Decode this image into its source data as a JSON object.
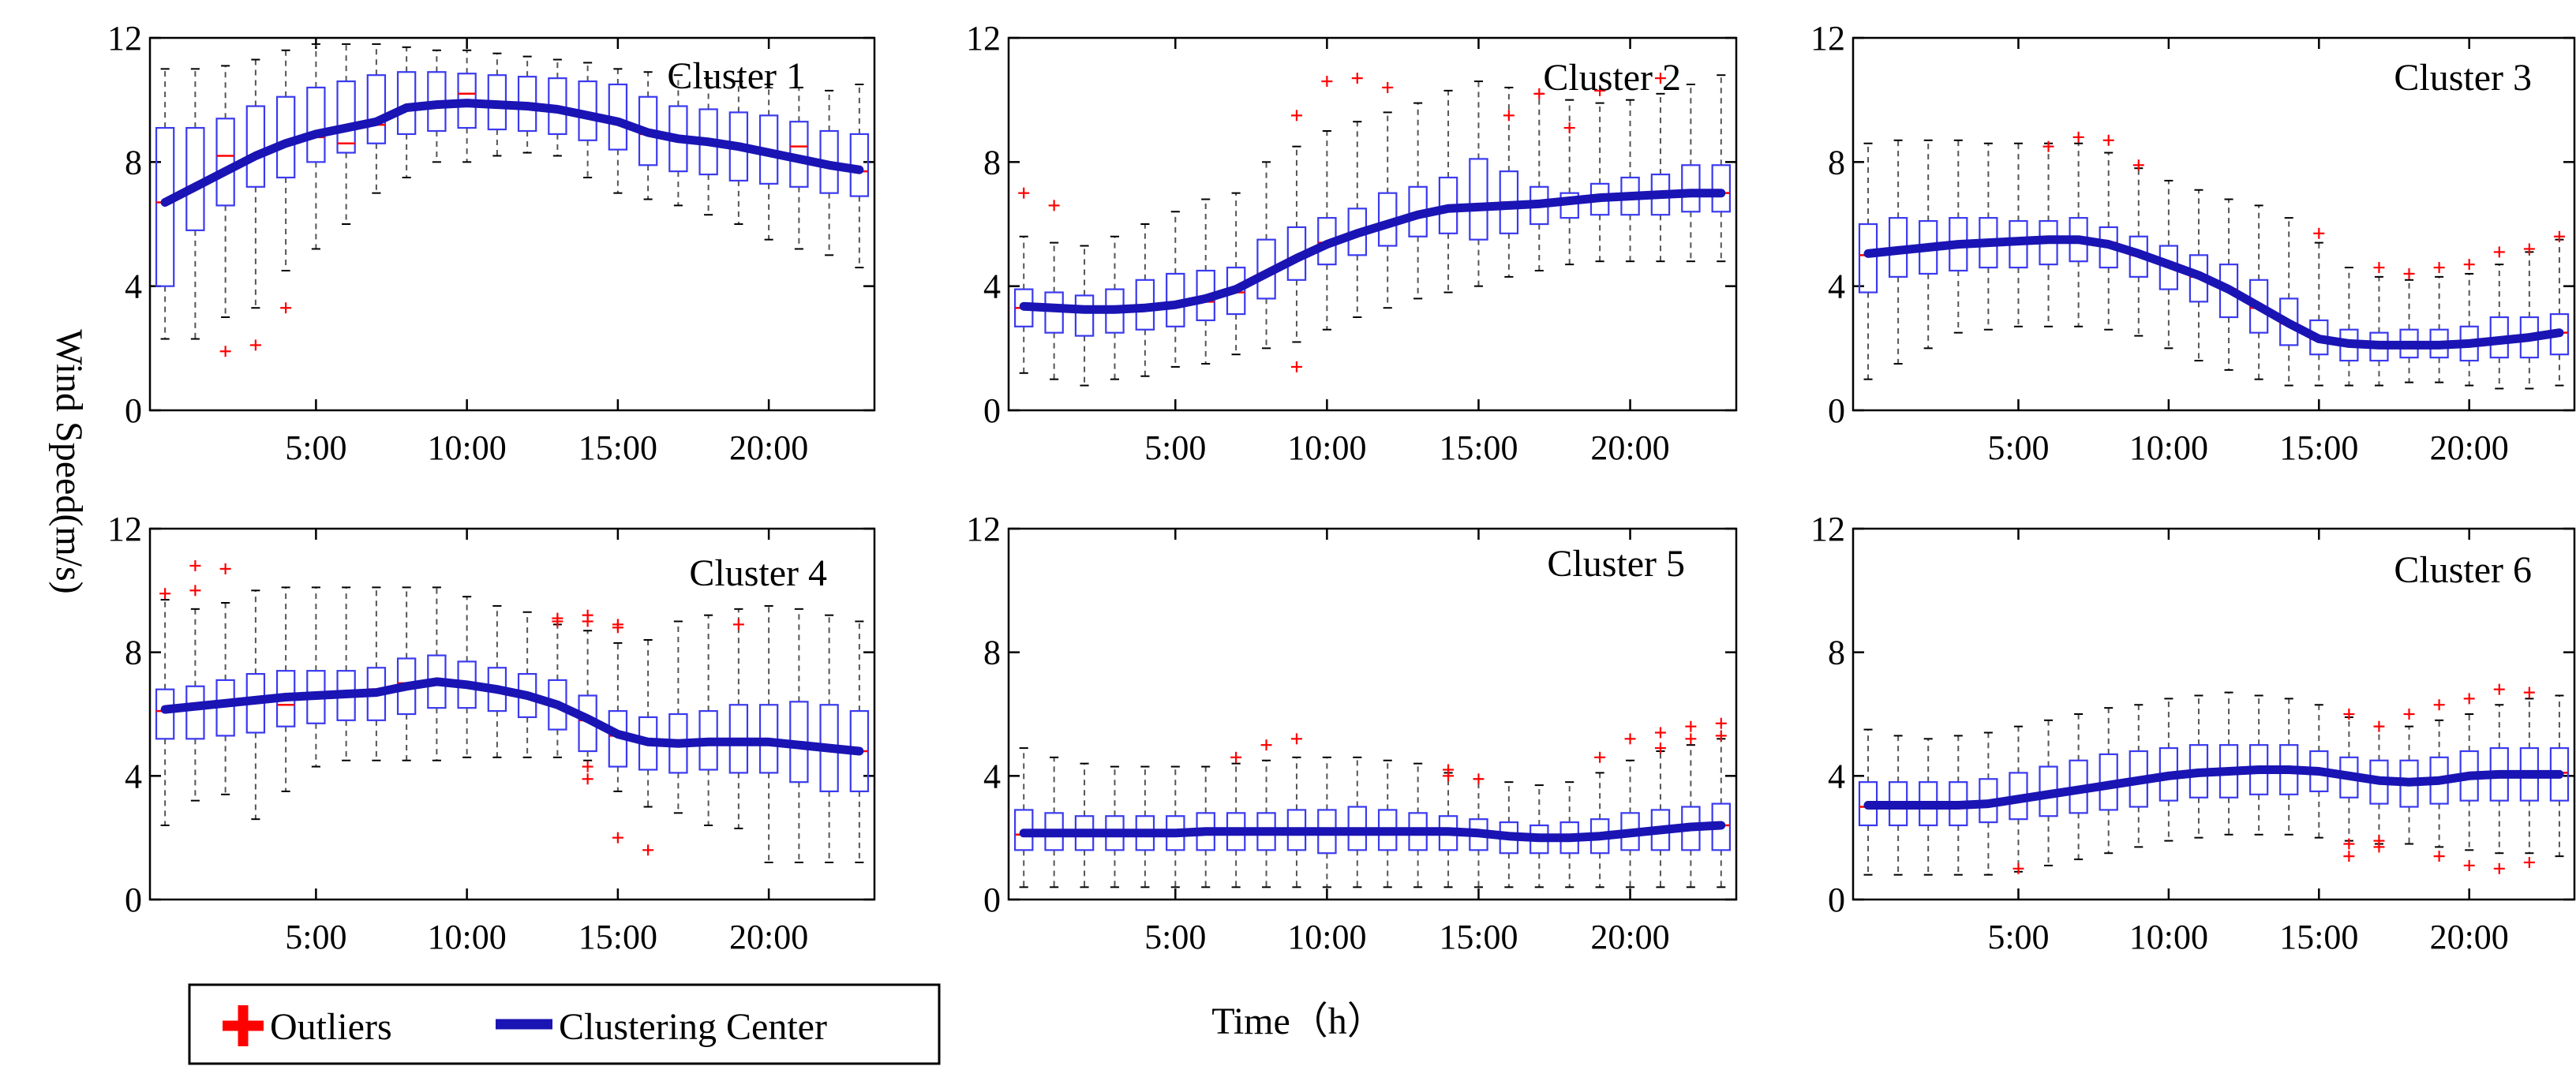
{
  "chart_data": {
    "type": "box",
    "xlabel": "Time（h）",
    "ylabel": "Wind Speed(m/s)",
    "x_tick_labels": [
      "5:00",
      "10:00",
      "15:00",
      "20:00"
    ],
    "y_tick_labels": [
      "0",
      "4",
      "8",
      "12"
    ],
    "ylim": [
      0,
      12
    ],
    "xlim": [
      -0.5,
      23.5
    ],
    "grid": false,
    "legend": {
      "position": "bottom-left",
      "entries": [
        {
          "label": "Outliers",
          "marker": "plus",
          "color": "#ff0000"
        },
        {
          "label": "Clustering Center",
          "marker": "line",
          "color": "#1a14b4"
        }
      ]
    },
    "colors": {
      "box": "#3a3af0",
      "median": "#ff0000",
      "whisker": "#555555",
      "center": "#1a14b4",
      "outlier": "#ff0000"
    },
    "panels": [
      {
        "title": "Cluster 1",
        "center": [
          6.7,
          7.2,
          7.7,
          8.2,
          8.6,
          8.9,
          9.1,
          9.3,
          9.75,
          9.85,
          9.9,
          9.85,
          9.8,
          9.7,
          9.5,
          9.3,
          8.95,
          8.75,
          8.65,
          8.5,
          8.3,
          8.1,
          7.9,
          7.75
        ],
        "q1": [
          4.0,
          5.8,
          6.6,
          7.2,
          7.5,
          8.0,
          8.3,
          8.6,
          8.9,
          9.0,
          9.1,
          9.05,
          9.0,
          8.9,
          8.7,
          8.4,
          7.9,
          7.7,
          7.6,
          7.4,
          7.3,
          7.2,
          7.0,
          6.9
        ],
        "q3": [
          9.1,
          9.1,
          9.4,
          9.8,
          10.1,
          10.4,
          10.6,
          10.8,
          10.9,
          10.9,
          10.85,
          10.8,
          10.75,
          10.7,
          10.6,
          10.5,
          10.1,
          9.8,
          9.7,
          9.6,
          9.5,
          9.3,
          9.0,
          8.9
        ],
        "median": [
          6.7,
          7.2,
          8.2,
          8.2,
          8.6,
          8.8,
          8.6,
          9.2,
          9.75,
          9.85,
          10.2,
          9.9,
          9.8,
          9.7,
          9.5,
          9.3,
          8.9,
          8.7,
          8.6,
          8.5,
          8.3,
          8.5,
          7.9,
          7.7
        ],
        "wlo": [
          2.3,
          2.3,
          3.0,
          3.3,
          4.5,
          5.2,
          6.0,
          7.0,
          7.5,
          8.0,
          8.0,
          8.2,
          8.3,
          8.2,
          7.5,
          7.0,
          6.8,
          6.6,
          6.3,
          6.0,
          5.5,
          5.2,
          5.0,
          4.6
        ],
        "whi": [
          11.0,
          11.0,
          11.1,
          11.3,
          11.6,
          11.8,
          11.8,
          11.8,
          11.7,
          11.6,
          11.6,
          11.5,
          11.4,
          11.3,
          11.2,
          11.0,
          10.9,
          10.8,
          10.7,
          10.6,
          10.5,
          10.4,
          10.3,
          10.5
        ],
        "outliers": [
          [
            2,
            1.9
          ],
          [
            3,
            2.1
          ],
          [
            4,
            3.3
          ]
        ]
      },
      {
        "title": "Cluster 2",
        "center": [
          3.35,
          3.3,
          3.25,
          3.25,
          3.3,
          3.4,
          3.6,
          3.9,
          4.4,
          4.9,
          5.35,
          5.7,
          6.0,
          6.3,
          6.5,
          6.55,
          6.6,
          6.65,
          6.75,
          6.85,
          6.9,
          6.95,
          7.0,
          7.0
        ],
        "q1": [
          2.7,
          2.5,
          2.4,
          2.5,
          2.6,
          2.7,
          2.9,
          3.1,
          3.6,
          4.2,
          4.7,
          5.0,
          5.3,
          5.6,
          5.7,
          5.5,
          5.7,
          6.0,
          6.2,
          6.3,
          6.3,
          6.3,
          6.4,
          6.4
        ],
        "q3": [
          3.9,
          3.8,
          3.7,
          3.9,
          4.2,
          4.4,
          4.5,
          4.6,
          5.5,
          5.9,
          6.2,
          6.5,
          7.0,
          7.2,
          7.5,
          8.1,
          7.7,
          7.2,
          7.0,
          7.3,
          7.5,
          7.6,
          7.9,
          7.9
        ],
        "median": [
          3.3,
          3.3,
          3.2,
          3.2,
          3.3,
          3.4,
          3.5,
          3.8,
          4.4,
          4.9,
          5.4,
          5.7,
          6.0,
          6.3,
          6.5,
          6.6,
          6.7,
          6.7,
          6.7,
          6.8,
          6.9,
          7.0,
          7.0,
          7.0
        ],
        "wlo": [
          1.2,
          1.0,
          0.8,
          1.0,
          1.1,
          1.4,
          1.5,
          1.8,
          2.0,
          2.2,
          2.6,
          3.0,
          3.3,
          3.6,
          3.8,
          4.0,
          4.3,
          4.5,
          4.7,
          4.8,
          4.8,
          4.8,
          4.8,
          4.8
        ],
        "whi": [
          5.6,
          5.4,
          5.3,
          5.6,
          6.0,
          6.4,
          6.8,
          7.0,
          8.0,
          8.5,
          9.0,
          9.3,
          9.6,
          9.9,
          10.3,
          10.6,
          10.4,
          10.2,
          10.0,
          9.9,
          10.0,
          10.2,
          10.5,
          10.8
        ],
        "outliers": [
          [
            0,
            7.0
          ],
          [
            1,
            6.6
          ],
          [
            9,
            9.5
          ],
          [
            9,
            1.4
          ],
          [
            10,
            10.6
          ],
          [
            11,
            10.7
          ],
          [
            12,
            10.4
          ],
          [
            16,
            9.5
          ],
          [
            17,
            10.2
          ],
          [
            18,
            9.1
          ],
          [
            19,
            10.3
          ],
          [
            21,
            10.7
          ]
        ]
      },
      {
        "title": "Cluster 3",
        "center": [
          5.05,
          5.15,
          5.25,
          5.35,
          5.4,
          5.45,
          5.5,
          5.5,
          5.35,
          5.05,
          4.7,
          4.35,
          3.9,
          3.35,
          2.8,
          2.3,
          2.15,
          2.1,
          2.1,
          2.1,
          2.15,
          2.25,
          2.35,
          2.5
        ],
        "q1": [
          3.8,
          4.3,
          4.4,
          4.5,
          4.6,
          4.6,
          4.7,
          4.8,
          4.6,
          4.3,
          3.9,
          3.5,
          3.0,
          2.5,
          2.1,
          1.8,
          1.6,
          1.6,
          1.7,
          1.7,
          1.6,
          1.7,
          1.7,
          1.8
        ],
        "q3": [
          6.0,
          6.2,
          6.1,
          6.2,
          6.2,
          6.1,
          6.1,
          6.2,
          5.9,
          5.6,
          5.3,
          5.0,
          4.7,
          4.2,
          3.6,
          2.9,
          2.6,
          2.5,
          2.6,
          2.6,
          2.7,
          3.0,
          3.0,
          3.1
        ],
        "median": [
          5.0,
          5.2,
          5.3,
          5.4,
          5.4,
          5.5,
          5.5,
          5.5,
          5.4,
          5.0,
          4.7,
          4.3,
          3.9,
          3.3,
          2.8,
          2.3,
          2.1,
          2.1,
          2.0,
          2.1,
          2.1,
          2.2,
          2.3,
          2.5
        ],
        "wlo": [
          1.0,
          1.5,
          2.0,
          2.5,
          2.6,
          2.7,
          2.7,
          2.7,
          2.6,
          2.4,
          2.0,
          1.6,
          1.3,
          1.0,
          0.8,
          0.8,
          0.8,
          0.8,
          0.9,
          0.9,
          0.8,
          0.7,
          0.7,
          0.8
        ],
        "whi": [
          8.6,
          8.7,
          8.7,
          8.7,
          8.6,
          8.6,
          8.6,
          8.6,
          8.3,
          7.8,
          7.4,
          7.1,
          6.8,
          6.6,
          6.2,
          5.4,
          4.6,
          4.3,
          4.2,
          4.3,
          4.4,
          4.7,
          5.1,
          5.5
        ],
        "outliers": [
          [
            6,
            8.5
          ],
          [
            7,
            8.8
          ],
          [
            8,
            8.7
          ],
          [
            9,
            7.9
          ],
          [
            15,
            5.7
          ],
          [
            17,
            4.6
          ],
          [
            18,
            4.4
          ],
          [
            19,
            4.6
          ],
          [
            20,
            4.7
          ],
          [
            21,
            5.1
          ],
          [
            22,
            5.2
          ],
          [
            23,
            5.6
          ]
        ]
      },
      {
        "title": "Cluster 4",
        "center": [
          6.15,
          6.25,
          6.35,
          6.45,
          6.55,
          6.6,
          6.65,
          6.7,
          6.9,
          7.05,
          6.95,
          6.8,
          6.6,
          6.3,
          5.85,
          5.35,
          5.1,
          5.05,
          5.1,
          5.1,
          5.1,
          5.0,
          4.9,
          4.8
        ],
        "q1": [
          5.2,
          5.2,
          5.3,
          5.4,
          5.6,
          5.7,
          5.8,
          5.8,
          6.0,
          6.2,
          6.2,
          6.1,
          5.9,
          5.5,
          4.8,
          4.3,
          4.2,
          4.1,
          4.2,
          4.1,
          4.1,
          3.8,
          3.5,
          3.5
        ],
        "q3": [
          6.8,
          6.9,
          7.1,
          7.3,
          7.4,
          7.4,
          7.4,
          7.5,
          7.8,
          7.9,
          7.7,
          7.5,
          7.3,
          7.1,
          6.6,
          6.1,
          5.9,
          6.0,
          6.1,
          6.3,
          6.3,
          6.4,
          6.3,
          6.1
        ],
        "median": [
          6.1,
          6.2,
          6.3,
          6.5,
          6.3,
          6.6,
          6.6,
          6.8,
          7.0,
          7.1,
          6.9,
          6.8,
          6.6,
          6.3,
          5.8,
          5.3,
          5.1,
          5.0,
          5.1,
          5.1,
          5.0,
          5.0,
          4.9,
          4.8
        ],
        "wlo": [
          2.4,
          3.2,
          3.4,
          2.6,
          3.5,
          4.3,
          4.5,
          4.5,
          4.5,
          4.5,
          4.6,
          4.6,
          4.6,
          4.6,
          4.5,
          3.5,
          3.0,
          2.8,
          2.4,
          2.3,
          1.2,
          1.2,
          1.2,
          1.2
        ],
        "whi": [
          9.7,
          9.4,
          9.6,
          10.0,
          10.1,
          10.1,
          10.1,
          10.1,
          10.1,
          10.1,
          9.8,
          9.5,
          9.3,
          8.9,
          8.7,
          8.3,
          8.4,
          9.0,
          9.2,
          9.4,
          9.5,
          9.4,
          9.2,
          9.0
        ],
        "outliers": [
          [
            0,
            9.9
          ],
          [
            1,
            10.8
          ],
          [
            1,
            10.0
          ],
          [
            2,
            10.7
          ],
          [
            13,
            9.1
          ],
          [
            13,
            9.0
          ],
          [
            14,
            9.2
          ],
          [
            14,
            9.0
          ],
          [
            14,
            4.3
          ],
          [
            14,
            3.9
          ],
          [
            15,
            8.9
          ],
          [
            15,
            8.8
          ],
          [
            15,
            2.0
          ],
          [
            16,
            1.6
          ],
          [
            19,
            8.9
          ]
        ]
      },
      {
        "title": "Cluster 5",
        "center": [
          2.15,
          2.15,
          2.15,
          2.15,
          2.15,
          2.15,
          2.2,
          2.2,
          2.2,
          2.2,
          2.2,
          2.2,
          2.2,
          2.2,
          2.2,
          2.15,
          2.05,
          2.0,
          2.0,
          2.05,
          2.15,
          2.25,
          2.35,
          2.4
        ],
        "q1": [
          1.6,
          1.6,
          1.6,
          1.6,
          1.6,
          1.6,
          1.6,
          1.6,
          1.6,
          1.6,
          1.5,
          1.6,
          1.6,
          1.6,
          1.6,
          1.6,
          1.5,
          1.5,
          1.5,
          1.5,
          1.6,
          1.6,
          1.6,
          1.6
        ],
        "q3": [
          2.9,
          2.8,
          2.7,
          2.7,
          2.7,
          2.7,
          2.8,
          2.8,
          2.8,
          2.9,
          2.9,
          3.0,
          2.9,
          2.8,
          2.7,
          2.6,
          2.5,
          2.4,
          2.5,
          2.6,
          2.8,
          2.9,
          3.0,
          3.1
        ],
        "median": [
          2.1,
          2.1,
          2.1,
          2.1,
          2.1,
          2.1,
          2.2,
          2.2,
          2.2,
          2.2,
          2.2,
          2.2,
          2.2,
          2.2,
          2.2,
          2.1,
          2.0,
          2.0,
          2.0,
          2.0,
          2.1,
          2.2,
          2.3,
          2.4
        ],
        "wlo": [
          0.4,
          0.4,
          0.4,
          0.4,
          0.4,
          0.4,
          0.4,
          0.4,
          0.4,
          0.4,
          0.4,
          0.4,
          0.4,
          0.4,
          0.4,
          0.4,
          0.4,
          0.4,
          0.4,
          0.4,
          0.4,
          0.4,
          0.4,
          0.4
        ],
        "whi": [
          4.9,
          4.6,
          4.4,
          4.3,
          4.3,
          4.3,
          4.3,
          4.4,
          4.5,
          4.6,
          4.6,
          4.6,
          4.5,
          4.4,
          4.1,
          3.9,
          3.8,
          3.7,
          3.8,
          4.1,
          4.5,
          4.8,
          5.0,
          5.2
        ],
        "outliers": [
          [
            7,
            4.6
          ],
          [
            8,
            5.0
          ],
          [
            9,
            5.2
          ],
          [
            14,
            4.2
          ],
          [
            14,
            4.0
          ],
          [
            15,
            3.9
          ],
          [
            19,
            4.6
          ],
          [
            20,
            5.2
          ],
          [
            21,
            5.4
          ],
          [
            21,
            4.9
          ],
          [
            22,
            5.6
          ],
          [
            22,
            5.2
          ],
          [
            23,
            5.7
          ],
          [
            23,
            5.3
          ]
        ]
      },
      {
        "title": "Cluster 6",
        "center": [
          3.05,
          3.05,
          3.05,
          3.05,
          3.1,
          3.25,
          3.4,
          3.55,
          3.7,
          3.85,
          4.0,
          4.1,
          4.15,
          4.2,
          4.2,
          4.15,
          4.0,
          3.85,
          3.8,
          3.85,
          4.0,
          4.05,
          4.05,
          4.05
        ],
        "q1": [
          2.4,
          2.4,
          2.4,
          2.4,
          2.5,
          2.6,
          2.7,
          2.8,
          2.9,
          3.0,
          3.2,
          3.3,
          3.3,
          3.4,
          3.4,
          3.5,
          3.3,
          3.1,
          3.0,
          3.1,
          3.2,
          3.2,
          3.2,
          3.2
        ],
        "q3": [
          3.8,
          3.8,
          3.8,
          3.8,
          3.9,
          4.1,
          4.3,
          4.5,
          4.7,
          4.8,
          4.9,
          5.0,
          5.0,
          5.0,
          5.0,
          4.8,
          4.6,
          4.5,
          4.5,
          4.6,
          4.8,
          4.9,
          4.9,
          4.9
        ],
        "median": [
          3.0,
          3.0,
          3.0,
          3.0,
          3.1,
          3.2,
          3.4,
          3.5,
          3.7,
          3.8,
          4.0,
          4.1,
          4.1,
          4.2,
          4.2,
          4.1,
          4.0,
          3.8,
          3.8,
          3.8,
          4.0,
          4.0,
          4.0,
          4.1
        ],
        "wlo": [
          0.8,
          0.8,
          0.8,
          0.8,
          0.8,
          0.9,
          1.1,
          1.3,
          1.5,
          1.7,
          1.9,
          2.0,
          2.1,
          2.1,
          2.1,
          2.0,
          1.9,
          1.8,
          1.8,
          1.7,
          1.6,
          1.5,
          1.5,
          1.4
        ],
        "whi": [
          5.5,
          5.3,
          5.2,
          5.3,
          5.4,
          5.6,
          5.8,
          6.0,
          6.2,
          6.3,
          6.5,
          6.6,
          6.7,
          6.6,
          6.5,
          6.3,
          5.9,
          5.6,
          5.6,
          5.8,
          6.0,
          6.3,
          6.5,
          6.6
        ],
        "outliers": [
          [
            5,
            1.0
          ],
          [
            16,
            6.0
          ],
          [
            16,
            1.8
          ],
          [
            16,
            1.4
          ],
          [
            17,
            5.6
          ],
          [
            17,
            1.9
          ],
          [
            17,
            1.7
          ],
          [
            18,
            6.0
          ],
          [
            19,
            6.3
          ],
          [
            19,
            1.4
          ],
          [
            20,
            6.5
          ],
          [
            20,
            1.1
          ],
          [
            21,
            6.8
          ],
          [
            21,
            1.0
          ],
          [
            22,
            6.7
          ],
          [
            22,
            1.2
          ]
        ]
      }
    ]
  }
}
